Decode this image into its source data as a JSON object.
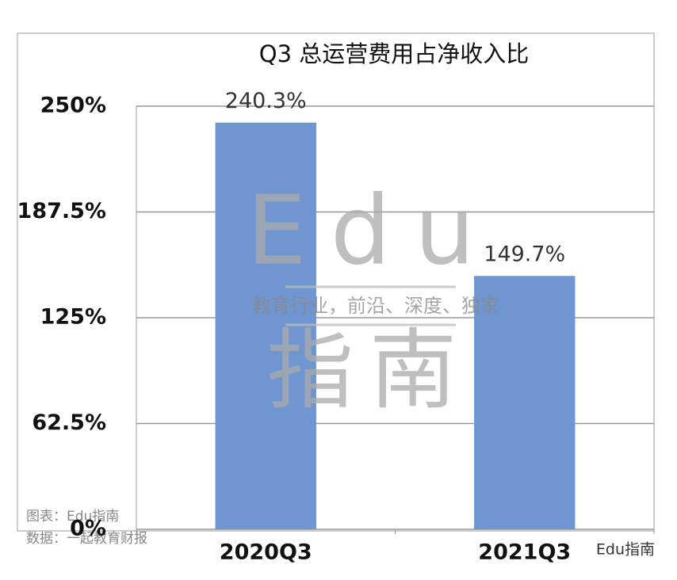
{
  "chart_data": {
    "type": "bar",
    "title": "Q3 总运营费用占净收入比",
    "categories": [
      "2020Q3",
      "2021Q3"
    ],
    "values": [
      240.3,
      149.7
    ],
    "value_labels": [
      "240.3%",
      "149.7%"
    ],
    "color": "#7096d2",
    "ylim": [
      0,
      250
    ],
    "yticks": [
      {
        "value": 0,
        "label": "0%"
      },
      {
        "value": 62.5,
        "label": "62.5%"
      },
      {
        "value": 125,
        "label": "125%"
      },
      {
        "value": 187.5,
        "label": "187.5%"
      },
      {
        "value": 250,
        "label": "250%"
      }
    ],
    "grid": true,
    "watermark": {
      "logo": "Edu",
      "slogan": "教育行业，前沿、深度、独家",
      "name": "指南"
    },
    "notes": [
      "图表：Edu指南",
      "数据：一起教育财报"
    ],
    "account": "Edu指南"
  }
}
